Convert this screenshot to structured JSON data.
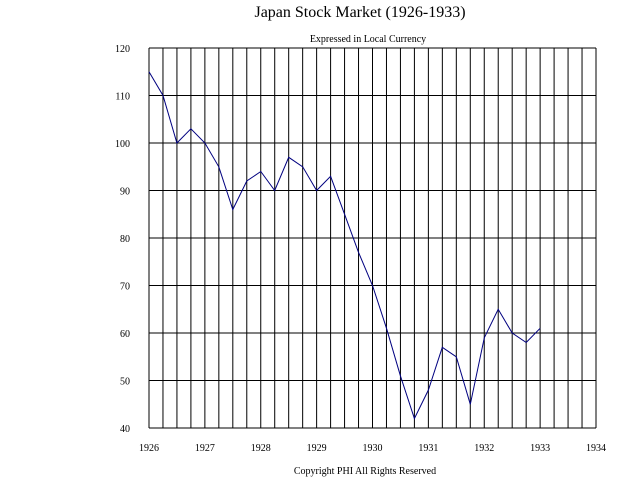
{
  "chart_data": {
    "type": "line",
    "title": "Japan Stock Market (1926-1933)",
    "subtitle": "Expressed in Local Currency",
    "footer": "Copyright PHI All Rights Reserved",
    "xlabel": "",
    "ylabel": "",
    "xlim": [
      1926,
      1934
    ],
    "ylim": [
      40,
      120
    ],
    "x_ticks": [
      1926,
      1927,
      1928,
      1929,
      1930,
      1931,
      1932,
      1933,
      1934
    ],
    "y_ticks": [
      40,
      50,
      60,
      70,
      80,
      90,
      100,
      110,
      120
    ],
    "grid": true,
    "line_color": "#000080",
    "series": [
      {
        "x": [
          1926.0,
          1926.25,
          1926.5,
          1926.75,
          1927.0,
          1927.25,
          1927.5,
          1927.75,
          1928.0,
          1928.25,
          1928.5,
          1928.75,
          1929.0,
          1929.25,
          1929.5,
          1929.75,
          1930.0,
          1930.25,
          1930.5,
          1930.75,
          1931.0,
          1931.25,
          1931.5,
          1931.75,
          1932.0,
          1932.25,
          1932.5,
          1932.75,
          1933.0
        ],
        "values": [
          115,
          110,
          100,
          103,
          100,
          95,
          86,
          92,
          94,
          90,
          97,
          95,
          90,
          93,
          85,
          77,
          70,
          61,
          51,
          42,
          48,
          57,
          55,
          45,
          59,
          65,
          60,
          58,
          61
        ]
      }
    ]
  }
}
